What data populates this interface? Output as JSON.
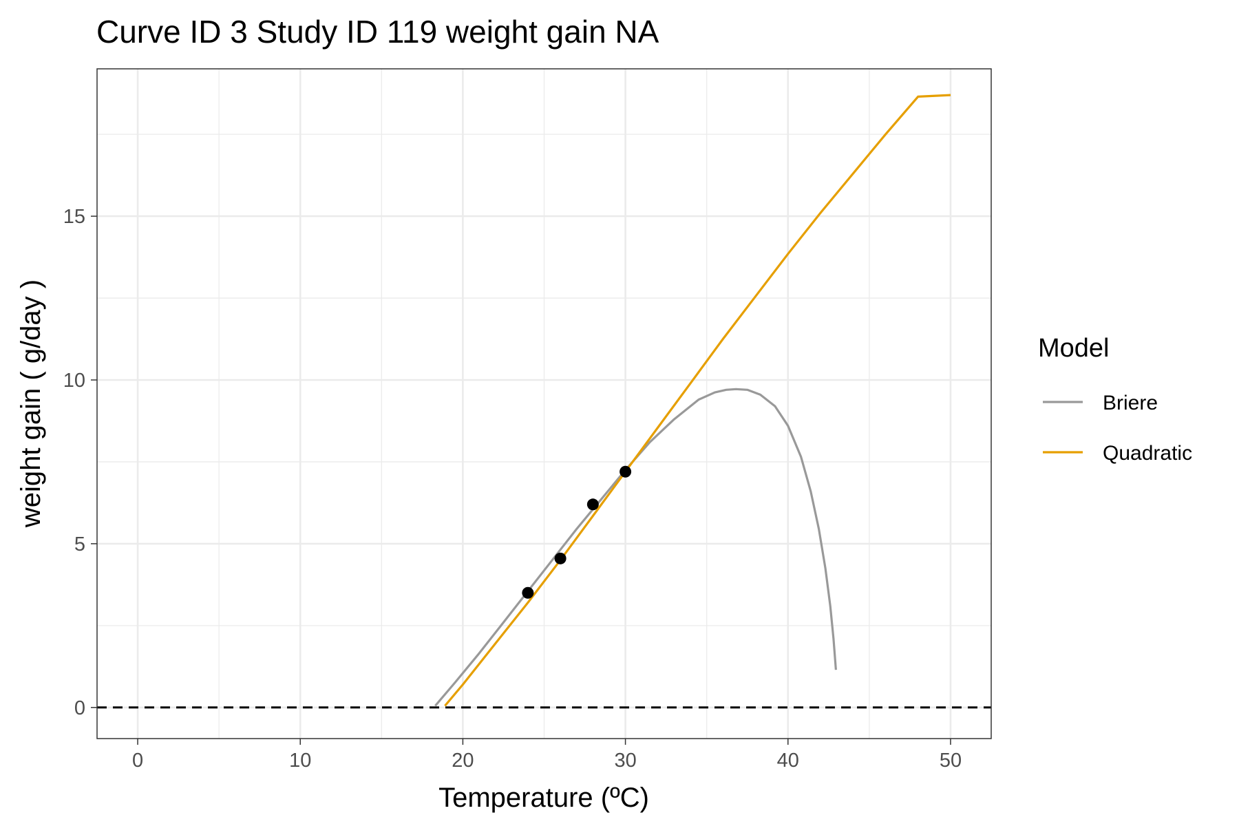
{
  "chart_data": {
    "type": "line",
    "title": "Curve ID 3 Study ID 119 weight gain NA",
    "xlabel": "Temperature (ºC)",
    "ylabel": "weight gain ( g/day )",
    "xlim": [
      -2.5,
      52.5
    ],
    "ylim": [
      -0.95,
      19.5
    ],
    "x_ticks": [
      0,
      10,
      20,
      30,
      40,
      50
    ],
    "x_tick_labels": [
      "0",
      "10",
      "20",
      "30",
      "40",
      "50"
    ],
    "y_ticks": [
      0,
      5,
      10,
      15
    ],
    "y_tick_labels": [
      "0",
      "5",
      "10",
      "15"
    ],
    "x_minor_ticks": [
      5,
      15,
      25,
      35,
      45
    ],
    "y_minor_ticks": [
      2.5,
      7.5,
      12.5,
      17.5
    ],
    "grid": true,
    "reference_line": {
      "y": 0,
      "style": "dashed",
      "color": "#000000"
    },
    "points": {
      "x": [
        24,
        26,
        28,
        30
      ],
      "y": [
        3.5,
        4.55,
        6.2,
        7.2
      ],
      "color": "#000000"
    },
    "legend": {
      "title": "Model",
      "position": "right"
    },
    "series": [
      {
        "name": "Briere",
        "color": "#999999",
        "x": [
          18.3,
          19.5,
          21,
          22.5,
          24,
          25.5,
          27,
          28.5,
          30,
          31.5,
          33,
          34.5,
          35.5,
          36.2,
          36.8,
          37.5,
          38.3,
          39.2,
          40.0,
          40.8,
          41.4,
          41.9,
          42.3,
          42.6,
          42.8,
          42.95
        ],
        "y": [
          0.05,
          0.75,
          1.65,
          2.6,
          3.55,
          4.5,
          5.45,
          6.35,
          7.25,
          8.1,
          8.8,
          9.4,
          9.62,
          9.7,
          9.72,
          9.7,
          9.55,
          9.2,
          8.6,
          7.65,
          6.6,
          5.45,
          4.25,
          3.1,
          2.1,
          1.15
        ]
      },
      {
        "name": "Quadratic",
        "color": "#E69F00",
        "x": [
          18.9,
          20,
          22,
          24,
          26,
          28,
          30,
          32,
          34,
          36,
          38,
          40,
          42,
          44,
          46,
          48,
          50
        ],
        "y": [
          0.05,
          0.7,
          1.95,
          3.2,
          4.5,
          5.85,
          7.2,
          8.55,
          9.9,
          11.25,
          12.55,
          13.85,
          15.1,
          16.3,
          17.5,
          18.65,
          18.7
        ]
      }
    ]
  }
}
